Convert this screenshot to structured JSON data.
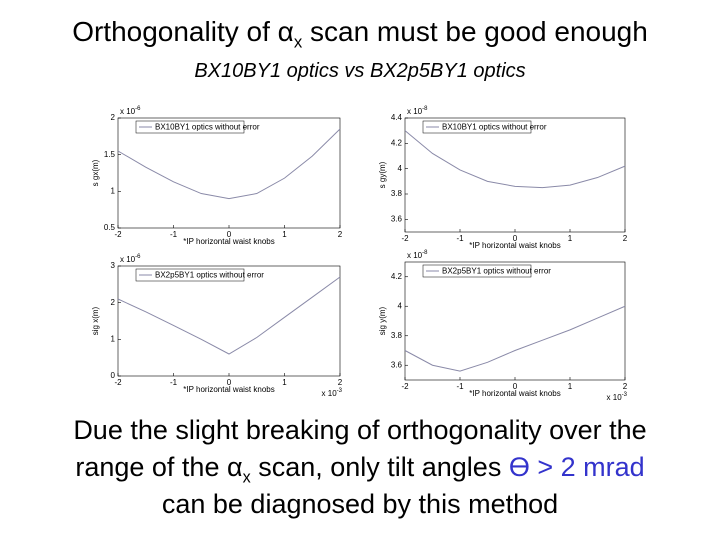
{
  "title": {
    "pre": "Orthogonality of α",
    "sub": "x",
    "post": " scan must be good enough"
  },
  "subtitle": "BX10BY1 optics vs BX2p5BY1 optics",
  "conclusion": {
    "line1": "Due the slight breaking of orthogonality over the",
    "line2_pre": "range of the α",
    "line2_sub": "x",
    "line2_mid": " scan, only tilt angles ",
    "line2_highlight": "ϴ > 2 mrad",
    "highlight_color": "#3333cc",
    "line3": "can be diagnosed by this method"
  },
  "chart_data": [
    {
      "type": "line",
      "xlabel": "*IP horizontal waist knobs",
      "ylabel": "s gx(m)",
      "y_multiplier": {
        "base": "x 10",
        "exp": "-6"
      },
      "x": [
        -2,
        -1.5,
        -1,
        -0.5,
        0,
        0.5,
        1,
        1.5,
        2
      ],
      "series": [
        {
          "name": "BX10BY1 optics without error",
          "color": "#8a8aa8",
          "values": [
            1.55,
            1.33,
            1.13,
            0.97,
            0.9,
            0.97,
            1.18,
            1.48,
            1.85
          ]
        }
      ],
      "xlim": [
        -2,
        2
      ],
      "xticks": [
        -2,
        -1,
        0,
        1,
        2
      ],
      "ylim": [
        0.5,
        2
      ],
      "yticks": [
        0.5,
        1,
        1.5,
        2
      ]
    },
    {
      "type": "line",
      "xlabel": "*IP horizontal waist knobs",
      "ylabel": "s gy(m)",
      "y_multiplier": {
        "base": "x 10",
        "exp": "-8"
      },
      "x": [
        -2,
        -1.5,
        -1,
        -0.5,
        0,
        0.5,
        1,
        1.5,
        2
      ],
      "series": [
        {
          "name": "BX10BY1 optics without error",
          "color": "#8a8aa8",
          "values": [
            4.3,
            4.12,
            3.99,
            3.9,
            3.86,
            3.85,
            3.87,
            3.93,
            4.02
          ]
        }
      ],
      "xlim": [
        -2,
        2
      ],
      "xticks": [
        -2,
        -1,
        0,
        1,
        2
      ],
      "ylim": [
        3.5,
        4.4
      ],
      "yticks": [
        3.6,
        3.8,
        4,
        4.2,
        4.4
      ]
    },
    {
      "type": "line",
      "xlabel": "*IP horizontal waist knobs",
      "ylabel": "sig x(m)",
      "y_multiplier": {
        "base": "x 10",
        "exp": "-6"
      },
      "x_multiplier": {
        "base": "x 10",
        "exp": "-3"
      },
      "x": [
        -2,
        -1.5,
        -1,
        -0.5,
        0,
        0.5,
        1,
        1.5,
        2
      ],
      "series": [
        {
          "name": "BX2p5BY1 optics without error",
          "color": "#8a8aa8",
          "values": [
            2.1,
            1.75,
            1.38,
            1.0,
            0.6,
            1.05,
            1.6,
            2.15,
            2.7
          ]
        }
      ],
      "xlim": [
        -2,
        2
      ],
      "xticks": [
        -2,
        -1,
        0,
        1,
        2
      ],
      "ylim": [
        0,
        3
      ],
      "yticks": [
        0,
        1,
        2,
        3
      ]
    },
    {
      "type": "line",
      "xlabel": "*IP horizontal waist knobs",
      "ylabel": "sig y(m)",
      "y_multiplier": {
        "base": "x 10",
        "exp": "-8"
      },
      "x_multiplier": {
        "base": "x 10",
        "exp": "-3"
      },
      "x": [
        -2,
        -1.5,
        -1,
        -0.5,
        0,
        0.5,
        1,
        1.5,
        2
      ],
      "series": [
        {
          "name": "BX2p5BY1 optics without error",
          "color": "#8a8aa8",
          "values": [
            3.7,
            3.6,
            3.56,
            3.62,
            3.7,
            3.77,
            3.84,
            3.92,
            4.0
          ]
        }
      ],
      "xlim": [
        -2,
        2
      ],
      "xticks": [
        -2,
        -1,
        0,
        1,
        2
      ],
      "ylim": [
        3.5,
        4.3
      ],
      "yticks": [
        3.6,
        3.8,
        4,
        4.2
      ]
    }
  ]
}
